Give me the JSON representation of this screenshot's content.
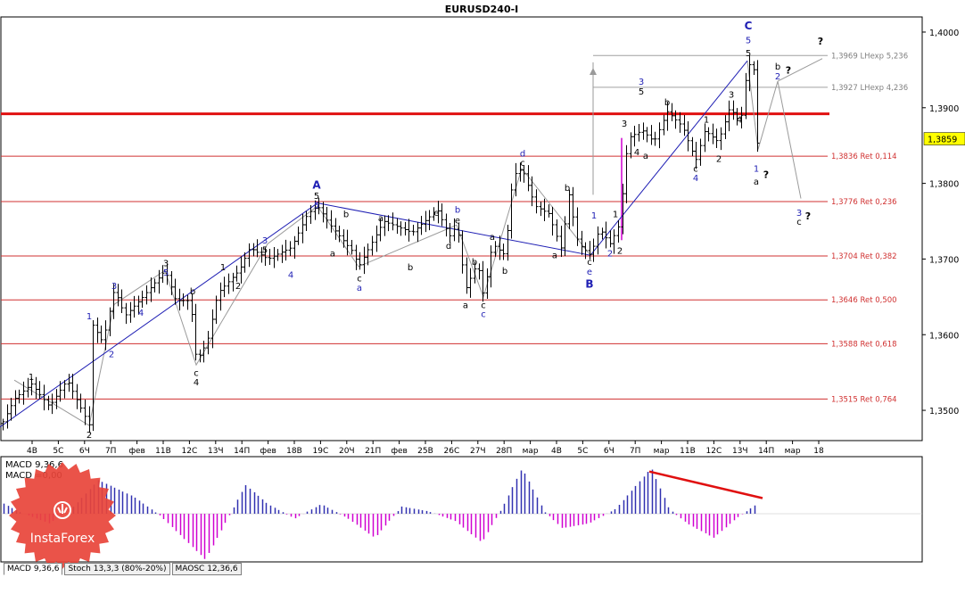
{
  "window": {
    "title": "EURUSD240-I"
  },
  "colors": {
    "bar": "#000000",
    "wave_blue": "#1f1fb4",
    "wave_black": "#000000",
    "fib_line": "#d03030",
    "resistance": "#e01010",
    "projection": "#9a9a9a",
    "macd_pos": "#3030b0",
    "macd_neg": "#d000d0",
    "divergence": "#e01010",
    "price_tag_bg": "#ffff00"
  },
  "chart_data": {
    "type": "candlestick-ohlc",
    "title": "EURUSD240-I",
    "ylim": [
      1.346,
      1.402
    ],
    "y_ticks": [
      "1,4000",
      "1,3900",
      "1,3800",
      "1,3700",
      "1,3600",
      "1,3500"
    ],
    "y_tick_values": [
      1.4,
      1.39,
      1.38,
      1.37,
      1.36,
      1.35
    ],
    "current_price": {
      "label": "1,3859",
      "value": 1.3859
    },
    "x_ticks": [
      "4В",
      "5С",
      "6Ч",
      "7П",
      "фев",
      "11В",
      "12С",
      "13Ч",
      "14П",
      "фев",
      "18В",
      "19С",
      "20Ч",
      "21П",
      "фев",
      "25В",
      "26С",
      "27Ч",
      "28П",
      "мар",
      "4В",
      "5С",
      "6Ч",
      "7П",
      "мар",
      "11В",
      "12С",
      "13Ч",
      "14П",
      "мар",
      "18"
    ],
    "price_path": [
      [
        0,
        1.3478
      ],
      [
        16,
        1.3515
      ],
      [
        35,
        1.3535
      ],
      [
        55,
        1.3505
      ],
      [
        75,
        1.354
      ],
      [
        100,
        1.348
      ],
      [
        103,
        1.3615
      ],
      [
        115,
        1.359
      ],
      [
        128,
        1.366
      ],
      [
        140,
        1.3625
      ],
      [
        160,
        1.365
      ],
      [
        185,
        1.3685
      ],
      [
        197,
        1.3645
      ],
      [
        213,
        1.3645
      ],
      [
        220,
        1.3565
      ],
      [
        232,
        1.359
      ],
      [
        244,
        1.3655
      ],
      [
        268,
        1.3685
      ],
      [
        280,
        1.3715
      ],
      [
        300,
        1.37
      ],
      [
        326,
        1.3715
      ],
      [
        345,
        1.376
      ],
      [
        356,
        1.377
      ],
      [
        370,
        1.3745
      ],
      [
        395,
        1.371
      ],
      [
        402,
        1.369
      ],
      [
        430,
        1.375
      ],
      [
        462,
        1.3735
      ],
      [
        490,
        1.3765
      ],
      [
        504,
        1.373
      ],
      [
        512,
        1.3745
      ],
      [
        522,
        1.366
      ],
      [
        535,
        1.3695
      ],
      [
        542,
        1.365
      ],
      [
        552,
        1.372
      ],
      [
        566,
        1.3705
      ],
      [
        575,
        1.381
      ],
      [
        585,
        1.382
      ],
      [
        600,
        1.377
      ],
      [
        615,
        1.376
      ],
      [
        630,
        1.371
      ],
      [
        637,
        1.379
      ],
      [
        648,
        1.372
      ],
      [
        662,
        1.3705
      ],
      [
        672,
        1.374
      ],
      [
        684,
        1.372
      ],
      [
        694,
        1.3745
      ],
      [
        704,
        1.386
      ],
      [
        720,
        1.387
      ],
      [
        733,
        1.3855
      ],
      [
        748,
        1.3895
      ],
      [
        765,
        1.3875
      ],
      [
        780,
        1.383
      ],
      [
        790,
        1.387
      ],
      [
        805,
        1.3855
      ],
      [
        818,
        1.39
      ],
      [
        830,
        1.388
      ],
      [
        838,
        1.396
      ],
      [
        845,
        1.395
      ],
      [
        850,
        1.384
      ]
    ],
    "fib_levels": [
      {
        "label": "1,3969 LHexp 5,236",
        "value": 1.3969
      },
      {
        "label": "1,3927 LHexp 4,236",
        "value": 1.3927
      },
      {
        "label": "1,3836 Ret 0,114",
        "value": 1.3836
      },
      {
        "label": "1,3776 Ret 0,236",
        "value": 1.3776
      },
      {
        "label": "1,3704 Ret 0,382",
        "value": 1.3704
      },
      {
        "label": "1,3646 Ret 0,500",
        "value": 1.3646
      },
      {
        "label": "1,3588 Ret 0,618",
        "value": 1.3588
      },
      {
        "label": "1,3515 Ret 0,764",
        "value": 1.3515
      }
    ],
    "resistance_level": 1.3892,
    "wave_lines_blue": [
      [
        [
          0,
          1.3478
        ],
        [
          356,
          1.3774
        ]
      ],
      [
        [
          356,
          1.3774
        ],
        [
          662,
          1.3705
        ]
      ],
      [
        [
          662,
          1.3705
        ],
        [
          838,
          1.3962
        ]
      ]
    ],
    "wave_lines_gray": [
      [
        [
          16,
          1.354
        ],
        [
          100,
          1.348
        ],
        [
          128,
          1.364
        ],
        [
          185,
          1.3685
        ],
        [
          220,
          1.356
        ],
        [
          300,
          1.372
        ],
        [
          356,
          1.377
        ]
      ],
      [
        [
          356,
          1.377
        ],
        [
          402,
          1.369
        ],
        [
          512,
          1.3745
        ],
        [
          542,
          1.365
        ],
        [
          585,
          1.382
        ],
        [
          662,
          1.3705
        ]
      ],
      [
        [
          838,
          1.3962
        ],
        [
          850,
          1.3845
        ],
        [
          872,
          1.3935
        ],
        [
          898,
          1.378
        ]
      ],
      [
        [
          872,
          1.3935
        ],
        [
          922,
          1.3965
        ]
      ],
      [
        [
          665,
          1.3785
        ],
        [
          665,
          1.396
        ]
      ],
      [
        [
          697,
          1.3725
        ],
        [
          697,
          1.386
        ]
      ]
    ],
    "wave_labels": [
      {
        "text": "1",
        "x": 35,
        "y": 1.3545,
        "color": "black"
      },
      {
        "text": "2",
        "x": 100,
        "y": 1.3468,
        "color": "black"
      },
      {
        "text": "1",
        "x": 100,
        "y": 1.3625,
        "color": "blue"
      },
      {
        "text": "2",
        "x": 125,
        "y": 1.3575,
        "color": "blue"
      },
      {
        "text": "3",
        "x": 128,
        "y": 1.3665,
        "color": "blue"
      },
      {
        "text": "4",
        "x": 158,
        "y": 1.363,
        "color": "blue"
      },
      {
        "text": "3",
        "x": 186,
        "y": 1.3695,
        "color": "black"
      },
      {
        "text": "5",
        "x": 186,
        "y": 1.3683,
        "color": "blue"
      },
      {
        "text": "b",
        "x": 216,
        "y": 1.3658,
        "color": "black"
      },
      {
        "text": "4",
        "x": 220,
        "y": 1.3538,
        "color": "black"
      },
      {
        "text": "c",
        "x": 220,
        "y": 1.355,
        "color": "black"
      },
      {
        "text": "1",
        "x": 250,
        "y": 1.369,
        "color": "black"
      },
      {
        "text": "2",
        "x": 267,
        "y": 1.3665,
        "color": "black"
      },
      {
        "text": "3",
        "x": 297,
        "y": 1.3725,
        "color": "blue"
      },
      {
        "text": "5",
        "x": 297,
        "y": 1.3713,
        "color": "black"
      },
      {
        "text": "4",
        "x": 326,
        "y": 1.368,
        "color": "blue"
      },
      {
        "text": "A",
        "x": 355,
        "y": 1.3798,
        "color": "blue"
      },
      {
        "text": "5",
        "x": 355,
        "y": 1.3784,
        "color": "black"
      },
      {
        "text": "5",
        "x": 355,
        "y": 1.3772,
        "color": "blue"
      },
      {
        "text": "b",
        "x": 388,
        "y": 1.376,
        "color": "black"
      },
      {
        "text": "a",
        "x": 373,
        "y": 1.3708,
        "color": "black"
      },
      {
        "text": "c",
        "x": 403,
        "y": 1.3675,
        "color": "black"
      },
      {
        "text": "a",
        "x": 403,
        "y": 1.3663,
        "color": "blue"
      },
      {
        "text": "a",
        "x": 427,
        "y": 1.3755,
        "color": "black"
      },
      {
        "text": "b",
        "x": 460,
        "y": 1.369,
        "color": "black"
      },
      {
        "text": "c",
        "x": 489,
        "y": 1.3762,
        "color": "black"
      },
      {
        "text": "b",
        "x": 513,
        "y": 1.3766,
        "color": "blue"
      },
      {
        "text": "e",
        "x": 513,
        "y": 1.3752,
        "color": "black"
      },
      {
        "text": "d",
        "x": 503,
        "y": 1.3718,
        "color": "black"
      },
      {
        "text": "b",
        "x": 532,
        "y": 1.3697,
        "color": "black"
      },
      {
        "text": "a",
        "x": 522,
        "y": 1.364,
        "color": "black"
      },
      {
        "text": "c",
        "x": 542,
        "y": 1.364,
        "color": "black"
      },
      {
        "text": "c",
        "x": 542,
        "y": 1.3628,
        "color": "blue"
      },
      {
        "text": "a",
        "x": 552,
        "y": 1.373,
        "color": "black"
      },
      {
        "text": "b",
        "x": 566,
        "y": 1.3685,
        "color": "black"
      },
      {
        "text": "d",
        "x": 586,
        "y": 1.384,
        "color": "blue"
      },
      {
        "text": "c",
        "x": 586,
        "y": 1.3828,
        "color": "black"
      },
      {
        "text": "b",
        "x": 636,
        "y": 1.3795,
        "color": "black"
      },
      {
        "text": "a",
        "x": 622,
        "y": 1.3706,
        "color": "black"
      },
      {
        "text": "1",
        "x": 666,
        "y": 1.3758,
        "color": "blue"
      },
      {
        "text": "c",
        "x": 661,
        "y": 1.3697,
        "color": "black"
      },
      {
        "text": "e",
        "x": 661,
        "y": 1.3684,
        "color": "blue"
      },
      {
        "text": "B",
        "x": 661,
        "y": 1.3667,
        "color": "blue"
      },
      {
        "text": "2",
        "x": 684,
        "y": 1.3708,
        "color": "blue"
      },
      {
        "text": "1",
        "x": 690,
        "y": 1.376,
        "color": "black"
      },
      {
        "text": "2",
        "x": 695,
        "y": 1.3712,
        "color": "black"
      },
      {
        "text": "3",
        "x": 700,
        "y": 1.388,
        "color": "black"
      },
      {
        "text": "4",
        "x": 714,
        "y": 1.3842,
        "color": "black"
      },
      {
        "text": "a",
        "x": 724,
        "y": 1.3837,
        "color": "black"
      },
      {
        "text": "3",
        "x": 719,
        "y": 1.3935,
        "color": "blue"
      },
      {
        "text": "5",
        "x": 719,
        "y": 1.3922,
        "color": "black"
      },
      {
        "text": "b",
        "x": 748,
        "y": 1.3908,
        "color": "black"
      },
      {
        "text": "1",
        "x": 792,
        "y": 1.3885,
        "color": "black"
      },
      {
        "text": "c",
        "x": 780,
        "y": 1.382,
        "color": "black"
      },
      {
        "text": "4",
        "x": 780,
        "y": 1.3808,
        "color": "blue"
      },
      {
        "text": "2",
        "x": 806,
        "y": 1.3833,
        "color": "black"
      },
      {
        "text": "3",
        "x": 820,
        "y": 1.3918,
        "color": "black"
      },
      {
        "text": "4",
        "x": 829,
        "y": 1.3885,
        "color": "black"
      },
      {
        "text": "C",
        "x": 839,
        "y": 1.4008,
        "color": "blue"
      },
      {
        "text": "5",
        "x": 839,
        "y": 1.399,
        "color": "blue"
      },
      {
        "text": "5",
        "x": 839,
        "y": 1.3973,
        "color": "black"
      },
      {
        "text": "1",
        "x": 848,
        "y": 1.382,
        "color": "blue"
      },
      {
        "text": "a",
        "x": 848,
        "y": 1.3803,
        "color": "black"
      },
      {
        "text": "?",
        "x": 859,
        "y": 1.3812,
        "color": "black"
      },
      {
        "text": "b",
        "x": 872,
        "y": 1.3955,
        "color": "black"
      },
      {
        "text": "2",
        "x": 872,
        "y": 1.3942,
        "color": "blue"
      },
      {
        "text": "?",
        "x": 884,
        "y": 1.395,
        "color": "black"
      },
      {
        "text": "?",
        "x": 920,
        "y": 1.3988,
        "color": "black"
      },
      {
        "text": "3",
        "x": 896,
        "y": 1.3762,
        "color": "blue"
      },
      {
        "text": "c",
        "x": 896,
        "y": 1.375,
        "color": "black"
      },
      {
        "text": "?",
        "x": 906,
        "y": 1.3757,
        "color": "black"
      }
    ],
    "indicator": {
      "title": "MACD 9,36,6",
      "value_label": "MACD =0,00",
      "zero_line": 0,
      "ylim": [
        -1.0,
        1.0
      ],
      "histogram_path": [
        [
          0,
          0.25
        ],
        [
          20,
          0.05
        ],
        [
          55,
          -0.2
        ],
        [
          80,
          0.1
        ],
        [
          110,
          0.7
        ],
        [
          150,
          0.35
        ],
        [
          180,
          -0.05
        ],
        [
          230,
          -0.95
        ],
        [
          255,
          -0.1
        ],
        [
          275,
          0.6
        ],
        [
          300,
          0.2
        ],
        [
          330,
          -0.1
        ],
        [
          360,
          0.2
        ],
        [
          390,
          -0.1
        ],
        [
          420,
          -0.5
        ],
        [
          450,
          0.15
        ],
        [
          480,
          0.05
        ],
        [
          510,
          -0.15
        ],
        [
          540,
          -0.6
        ],
        [
          565,
          0.2
        ],
        [
          585,
          0.95
        ],
        [
          610,
          0.05
        ],
        [
          630,
          -0.3
        ],
        [
          660,
          -0.2
        ],
        [
          690,
          0.1
        ],
        [
          730,
          0.95
        ],
        [
          750,
          0.1
        ],
        [
          770,
          -0.2
        ],
        [
          800,
          -0.5
        ],
        [
          825,
          -0.1
        ],
        [
          848,
          0.2
        ]
      ],
      "divergence_line": [
        [
          728,
          0.95
        ],
        [
          855,
          0.25
        ]
      ]
    }
  },
  "logo": {
    "text": "InstaForex"
  },
  "tabs": [
    {
      "label": "MACD 9,36,6",
      "active": true
    },
    {
      "label": "Stoch 13,3,3 (80%-20%)",
      "active": false
    },
    {
      "label": "MAOSC 12,36,6",
      "active": false
    }
  ]
}
